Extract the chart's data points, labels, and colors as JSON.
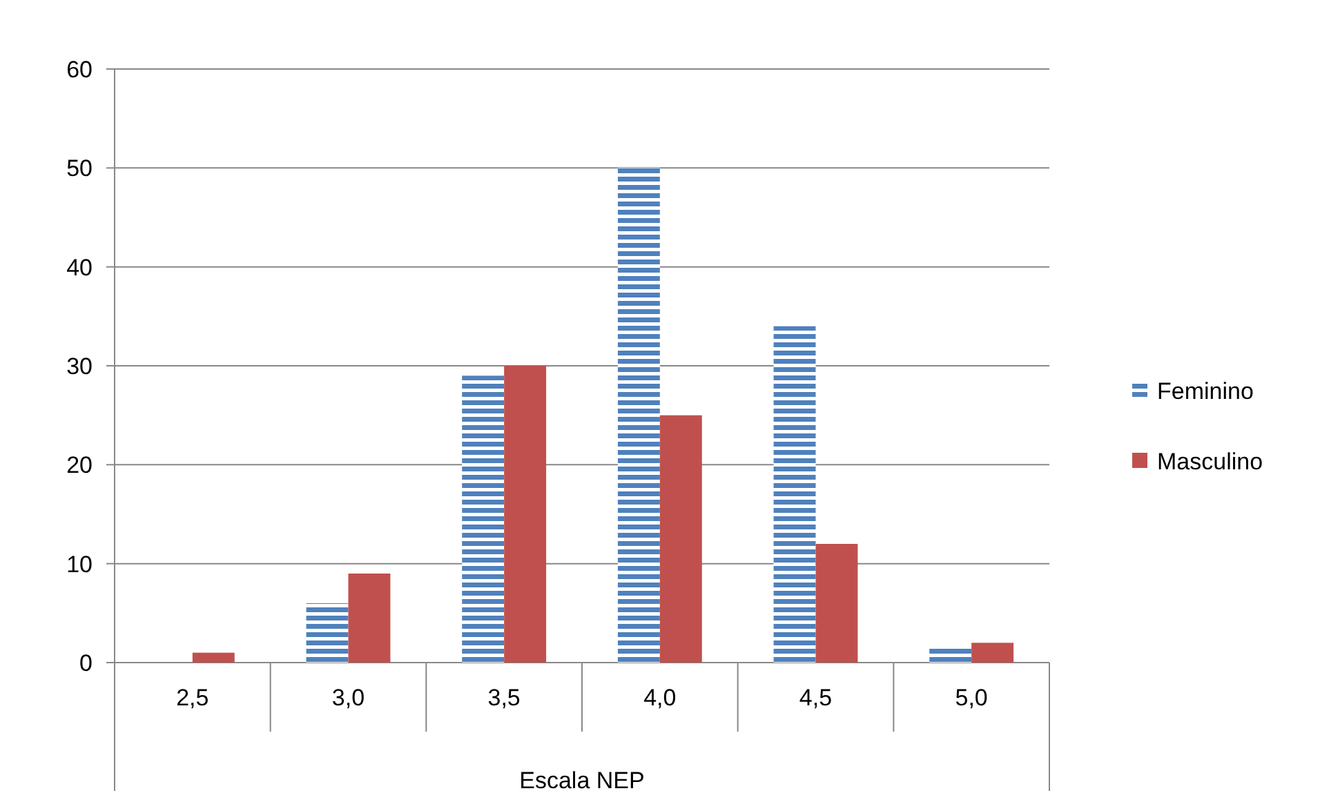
{
  "chart_data": {
    "type": "bar",
    "xlabel": "Escala NEP",
    "categories": [
      "2,5",
      "3,0",
      "3,5",
      "4,0",
      "4,5",
      "5,0"
    ],
    "series": [
      {
        "name": "Feminino",
        "color": "#4f81bd",
        "values": [
          0,
          6,
          29,
          50,
          34,
          1.5
        ]
      },
      {
        "name": "Masculino",
        "color": "#c0504d",
        "values": [
          1,
          9,
          30,
          25,
          12,
          2
        ]
      }
    ],
    "ylim": [
      0,
      60
    ],
    "yticks": [
      0,
      10,
      20,
      30,
      40,
      50,
      60
    ],
    "grid": "y",
    "legend": "right"
  }
}
